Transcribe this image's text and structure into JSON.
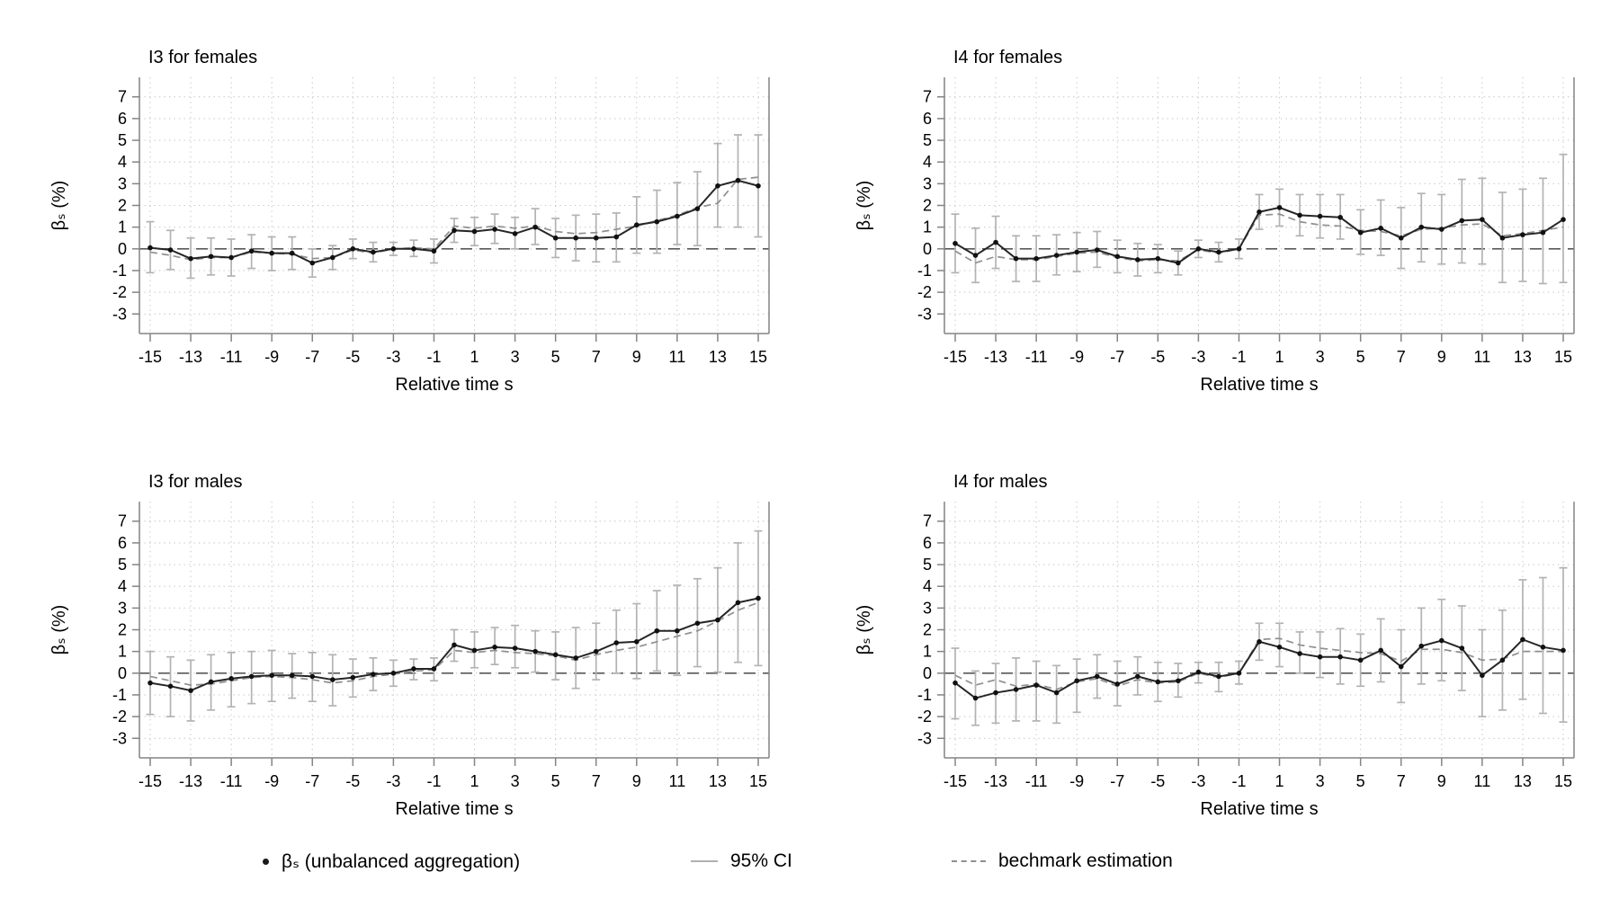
{
  "figure": {
    "ylabel": "βₛ (%)",
    "xlabel": "Relative time s",
    "y_ticks": [
      -3,
      -2,
      -1,
      0,
      1,
      2,
      3,
      4,
      5,
      6,
      7
    ],
    "x_ticks": [
      -15,
      -13,
      -11,
      -9,
      -7,
      -5,
      -3,
      -1,
      1,
      3,
      5,
      7,
      9,
      11,
      13,
      15
    ],
    "ylim": [
      -3.9,
      7.9
    ],
    "xlim": [
      -15,
      15
    ],
    "grid": "dotted, horizontal at every integer, vertical at odd relative times",
    "zero_line": "dashed horizontal reference at 0",
    "colors": {
      "series": "#262626",
      "marker": "#111111",
      "ci": "#b3b3b3",
      "benchmark": "#8f8f8f",
      "zero_line": "#595959",
      "grid": "#c6c6c6",
      "axis": "#848484",
      "text": "#000000"
    }
  },
  "legend": {
    "items": [
      {
        "marker": "dot",
        "label": "βₛ (unbalanced aggregation)"
      },
      {
        "marker": "line",
        "label": "95% CI"
      },
      {
        "marker": "dashes",
        "label": "bechmark estimation"
      }
    ],
    "position": "bottom center row"
  },
  "chart_data": [
    {
      "type": "line",
      "id": "i3-females",
      "title": "I3 for females",
      "xlabel": "Relative time s",
      "ylabel": "βₛ (%)",
      "x": [
        -15,
        -14,
        -13,
        -12,
        -11,
        -10,
        -9,
        -8,
        -7,
        -6,
        -5,
        -4,
        -3,
        -2,
        -1,
        0,
        1,
        2,
        3,
        4,
        5,
        6,
        7,
        8,
        9,
        10,
        11,
        12,
        13,
        14,
        15
      ],
      "series": {
        "beta": [
          0.05,
          -0.05,
          -0.45,
          -0.35,
          -0.4,
          -0.1,
          -0.2,
          -0.2,
          -0.65,
          -0.4,
          0.0,
          -0.15,
          0.0,
          0.0,
          -0.1,
          0.85,
          0.8,
          0.9,
          0.7,
          1.0,
          0.5,
          0.5,
          0.5,
          0.55,
          1.1,
          1.25,
          1.5,
          1.85,
          2.9,
          3.15,
          2.9
        ],
        "ci_lower": [
          -1.1,
          -0.95,
          -1.35,
          -1.2,
          -1.25,
          -0.9,
          -1.0,
          -0.95,
          -1.3,
          -0.95,
          -0.45,
          -0.6,
          -0.3,
          -0.35,
          -0.65,
          0.3,
          0.15,
          0.25,
          0.0,
          0.2,
          -0.4,
          -0.55,
          -0.6,
          -0.6,
          -0.2,
          -0.2,
          0.2,
          0.15,
          1.0,
          1.0,
          0.55
        ],
        "ci_upper": [
          1.25,
          0.85,
          0.5,
          0.5,
          0.45,
          0.65,
          0.55,
          0.55,
          0.0,
          0.15,
          0.45,
          0.3,
          0.3,
          0.4,
          0.45,
          1.4,
          1.45,
          1.6,
          1.45,
          1.85,
          1.4,
          1.55,
          1.6,
          1.65,
          2.4,
          2.7,
          3.05,
          3.55,
          4.85,
          5.25,
          5.25
        ],
        "benchmark": [
          -0.15,
          -0.3,
          -0.5,
          -0.4,
          -0.4,
          -0.15,
          -0.2,
          -0.25,
          -0.45,
          -0.4,
          -0.05,
          -0.2,
          0.0,
          0.05,
          0.0,
          1.05,
          0.95,
          1.05,
          0.95,
          1.05,
          0.8,
          0.7,
          0.75,
          0.9,
          1.05,
          1.3,
          1.55,
          1.9,
          2.1,
          3.2,
          3.3
        ]
      }
    },
    {
      "type": "line",
      "id": "i4-females",
      "title": "I4 for females",
      "xlabel": "Relative time s",
      "ylabel": "βₛ (%)",
      "x": [
        -15,
        -14,
        -13,
        -12,
        -11,
        -10,
        -9,
        -8,
        -7,
        -6,
        -5,
        -4,
        -3,
        -2,
        -1,
        0,
        1,
        2,
        3,
        4,
        5,
        6,
        7,
        8,
        9,
        10,
        11,
        12,
        13,
        14,
        15
      ],
      "series": {
        "beta": [
          0.25,
          -0.3,
          0.3,
          -0.45,
          -0.45,
          -0.3,
          -0.15,
          -0.05,
          -0.35,
          -0.5,
          -0.45,
          -0.65,
          0.0,
          -0.15,
          0.0,
          1.7,
          1.9,
          1.55,
          1.5,
          1.45,
          0.75,
          0.95,
          0.5,
          1.0,
          0.9,
          1.3,
          1.35,
          0.5,
          0.65,
          0.75,
          1.35
        ],
        "ci_lower": [
          -1.1,
          -1.55,
          -0.9,
          -1.5,
          -1.5,
          -1.2,
          -1.05,
          -0.85,
          -1.1,
          -1.25,
          -1.1,
          -1.2,
          -0.4,
          -0.6,
          -0.45,
          0.9,
          1.05,
          0.6,
          0.5,
          0.45,
          -0.25,
          -0.3,
          -0.9,
          -0.6,
          -0.7,
          -0.65,
          -0.7,
          -1.55,
          -1.5,
          -1.6,
          -1.55
        ],
        "ci_upper": [
          1.6,
          0.95,
          1.5,
          0.6,
          0.6,
          0.65,
          0.75,
          0.8,
          0.4,
          0.25,
          0.2,
          -0.1,
          0.4,
          0.3,
          0.45,
          2.5,
          2.75,
          2.5,
          2.5,
          2.5,
          1.8,
          2.25,
          1.9,
          2.55,
          2.5,
          3.2,
          3.25,
          2.6,
          2.75,
          3.25,
          4.35
        ],
        "benchmark": [
          -0.1,
          -0.65,
          -0.35,
          -0.5,
          -0.5,
          -0.35,
          -0.2,
          -0.15,
          -0.4,
          -0.55,
          -0.5,
          -0.55,
          -0.05,
          -0.2,
          0.0,
          1.55,
          1.6,
          1.25,
          1.1,
          1.05,
          0.85,
          0.8,
          0.6,
          0.9,
          0.95,
          1.1,
          1.15,
          0.6,
          0.7,
          0.85,
          1.0
        ]
      }
    },
    {
      "type": "line",
      "id": "i3-males",
      "title": "I3 for males",
      "xlabel": "Relative time s",
      "ylabel": "βₛ (%)",
      "x": [
        -15,
        -14,
        -13,
        -12,
        -11,
        -10,
        -9,
        -8,
        -7,
        -6,
        -5,
        -4,
        -3,
        -2,
        -1,
        0,
        1,
        2,
        3,
        4,
        5,
        6,
        7,
        8,
        9,
        10,
        11,
        12,
        13,
        14,
        15
      ],
      "series": {
        "beta": [
          -0.45,
          -0.6,
          -0.8,
          -0.4,
          -0.25,
          -0.15,
          -0.1,
          -0.1,
          -0.15,
          -0.3,
          -0.2,
          -0.05,
          0.0,
          0.2,
          0.2,
          1.3,
          1.05,
          1.2,
          1.15,
          1.0,
          0.85,
          0.7,
          1.0,
          1.4,
          1.45,
          1.95,
          1.95,
          2.3,
          2.45,
          3.25,
          3.45
        ],
        "ci_lower": [
          -1.9,
          -2.0,
          -2.2,
          -1.7,
          -1.55,
          -1.4,
          -1.3,
          -1.15,
          -1.3,
          -1.5,
          -1.1,
          -0.8,
          -0.6,
          -0.3,
          -0.35,
          0.55,
          0.25,
          0.4,
          0.25,
          0.05,
          -0.3,
          -0.7,
          -0.3,
          0.0,
          -0.25,
          0.1,
          -0.1,
          0.3,
          0.05,
          0.5,
          0.35
        ],
        "ci_upper": [
          1.0,
          0.75,
          0.6,
          0.85,
          0.95,
          1.0,
          1.05,
          0.9,
          0.95,
          0.85,
          0.65,
          0.7,
          0.6,
          0.65,
          0.7,
          2.0,
          1.9,
          2.1,
          2.2,
          1.95,
          1.9,
          2.1,
          2.3,
          2.9,
          3.2,
          3.8,
          4.05,
          4.35,
          4.85,
          6.0,
          6.55
        ],
        "benchmark": [
          -0.15,
          -0.35,
          -0.55,
          -0.5,
          -0.35,
          -0.2,
          -0.15,
          -0.2,
          -0.3,
          -0.45,
          -0.35,
          -0.15,
          -0.05,
          0.1,
          0.15,
          1.05,
          0.95,
          1.05,
          0.95,
          0.9,
          0.8,
          0.6,
          0.85,
          1.05,
          1.2,
          1.45,
          1.7,
          1.95,
          2.4,
          2.9,
          3.25
        ]
      }
    },
    {
      "type": "line",
      "id": "i4-males",
      "title": "I4 for males",
      "xlabel": "Relative time s",
      "ylabel": "βₛ (%)",
      "x": [
        -15,
        -14,
        -13,
        -12,
        -11,
        -10,
        -9,
        -8,
        -7,
        -6,
        -5,
        -4,
        -3,
        -2,
        -1,
        0,
        1,
        2,
        3,
        4,
        5,
        6,
        7,
        8,
        9,
        10,
        11,
        12,
        13,
        14,
        15
      ],
      "series": {
        "beta": [
          -0.45,
          -1.15,
          -0.9,
          -0.75,
          -0.55,
          -0.9,
          -0.35,
          -0.15,
          -0.5,
          -0.15,
          -0.4,
          -0.35,
          0.05,
          -0.15,
          0.0,
          1.45,
          1.2,
          0.9,
          0.75,
          0.75,
          0.6,
          1.05,
          0.3,
          1.25,
          1.5,
          1.15,
          -0.1,
          0.6,
          1.55,
          1.2,
          1.05
        ],
        "ci_lower": [
          -2.1,
          -2.4,
          -2.3,
          -2.2,
          -2.2,
          -2.3,
          -1.8,
          -1.15,
          -1.5,
          -1.0,
          -1.3,
          -1.1,
          -0.45,
          -0.85,
          -0.5,
          0.6,
          0.3,
          0.0,
          -0.2,
          -0.5,
          -0.6,
          -0.4,
          -1.35,
          -0.5,
          -0.35,
          -0.8,
          -2.0,
          -1.7,
          -1.2,
          -1.85,
          -2.25
        ],
        "ci_upper": [
          1.15,
          0.1,
          0.45,
          0.7,
          0.55,
          0.35,
          0.65,
          0.85,
          0.55,
          0.75,
          0.5,
          0.45,
          0.5,
          0.5,
          0.55,
          2.3,
          2.3,
          1.9,
          1.9,
          2.05,
          1.8,
          2.5,
          2.0,
          3.0,
          3.4,
          3.1,
          2.0,
          2.9,
          4.3,
          4.4,
          4.85
        ],
        "benchmark": [
          -0.1,
          -0.55,
          -0.3,
          -0.6,
          -0.5,
          -0.75,
          -0.4,
          -0.25,
          -0.6,
          -0.3,
          -0.45,
          -0.4,
          0.0,
          -0.2,
          0.0,
          1.55,
          1.6,
          1.3,
          1.15,
          1.05,
          0.95,
          0.9,
          0.55,
          1.1,
          1.1,
          0.95,
          0.6,
          0.65,
          1.0,
          1.0,
          1.0
        ]
      }
    }
  ]
}
